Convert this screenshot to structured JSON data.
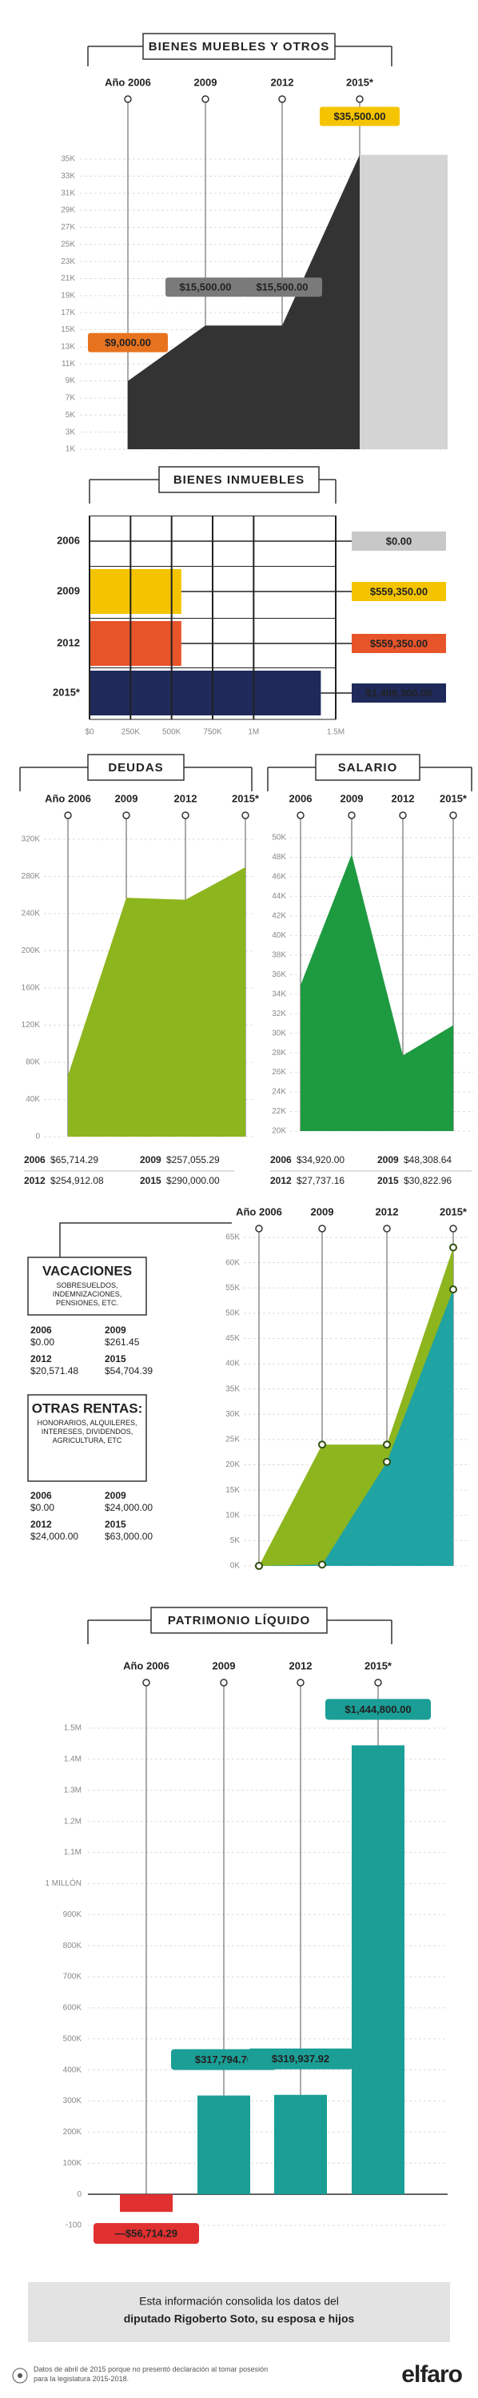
{
  "chart_data": [
    {
      "type": "area",
      "title": "BIENES MUEBLES Y OTROS",
      "categories": [
        "Año 2006",
        "2009",
        "2012",
        "2015*"
      ],
      "values": [
        9000,
        15500,
        15500,
        35500
      ],
      "value_labels": [
        "$9,000.00",
        "$15,500.00",
        "$15,500.00",
        "$35,500.00"
      ],
      "color": "#333333",
      "label_colors": [
        "#e8731f",
        "#7a7a7a",
        "#7a7a7a",
        "#f5c400"
      ],
      "ylim": [
        1000,
        35000
      ],
      "yticks": [
        {
          "value": 1000,
          "label": "1K"
        },
        {
          "value": 3000,
          "label": "3K"
        },
        {
          "value": 5000,
          "label": "5K"
        },
        {
          "value": 7000,
          "label": "7K"
        },
        {
          "value": 9000,
          "label": "9K"
        },
        {
          "value": 11000,
          "label": "11K"
        },
        {
          "value": 13000,
          "label": "13K"
        },
        {
          "value": 15000,
          "label": "15K"
        },
        {
          "value": 17000,
          "label": "17K"
        },
        {
          "value": 19000,
          "label": "19K"
        },
        {
          "value": 21000,
          "label": "21K"
        },
        {
          "value": 23000,
          "label": "23K"
        },
        {
          "value": 25000,
          "label": "25K"
        },
        {
          "value": 27000,
          "label": "27K"
        },
        {
          "value": 29000,
          "label": "29K"
        },
        {
          "value": 31000,
          "label": "31K"
        },
        {
          "value": 33000,
          "label": "33K"
        },
        {
          "value": 35000,
          "label": "35K"
        }
      ],
      "grid": true
    },
    {
      "type": "bar",
      "orientation": "horizontal",
      "title": "BIENES INMUEBLES",
      "categories": [
        "2006",
        "2009",
        "2012",
        "2015*"
      ],
      "values": [
        0,
        559350,
        559350,
        1409300
      ],
      "value_labels": [
        "$0.00",
        "$559,350.00",
        "$559,350.00",
        "$1,409,300.00"
      ],
      "colors": [
        "#c8c8c8",
        "#f5c400",
        "#e8542a",
        "#1f2a5a"
      ],
      "xlim": [
        0,
        1500000
      ],
      "xticks": [
        {
          "value": 0,
          "label": "$0"
        },
        {
          "value": 250000,
          "label": "250K"
        },
        {
          "value": 500000,
          "label": "500K"
        },
        {
          "value": 750000,
          "label": "750K"
        },
        {
          "value": 1000000,
          "label": "1M"
        },
        {
          "value": 1500000,
          "label": "1.5M"
        }
      ],
      "grid": true
    },
    {
      "type": "area",
      "title": "DEUDAS",
      "categories": [
        "Año 2006",
        "2009",
        "2012",
        "2015*"
      ],
      "table_categories": [
        "2006",
        "2009",
        "2012",
        "2015"
      ],
      "values": [
        65714.29,
        257055.29,
        254912.08,
        290000
      ],
      "value_labels": [
        "$65,714.29",
        "$257,055.29",
        "$254,912.08",
        "$290,000.00"
      ],
      "color": "#8db51e",
      "ylim": [
        0,
        320000
      ],
      "yticks": [
        0,
        {
          "value": 40000,
          "label": "40K"
        },
        {
          "value": 80000,
          "label": "80K"
        },
        {
          "value": 120000,
          "label": "120K"
        },
        {
          "value": 160000,
          "label": "160K"
        },
        {
          "value": 200000,
          "label": "200K"
        },
        {
          "value": 240000,
          "label": "240K"
        },
        {
          "value": 280000,
          "label": "280K"
        },
        {
          "value": 320000,
          "label": "320K"
        }
      ],
      "grid": true
    },
    {
      "type": "area",
      "title": "SALARIO",
      "categories": [
        "2006",
        "2009",
        "2012",
        "2015*"
      ],
      "table_categories": [
        "2006",
        "2009",
        "2012",
        "2015"
      ],
      "values": [
        34920,
        48308.64,
        27737.16,
        30822.96
      ],
      "value_labels": [
        "$34,920.00",
        "$48,308.64",
        "$27,737.16",
        "$30,822.96"
      ],
      "color": "#1e9a40",
      "ylim": [
        20000,
        50000
      ],
      "yticks": [
        {
          "value": 20000,
          "label": "20K"
        },
        {
          "value": 22000,
          "label": "22K"
        },
        {
          "value": 24000,
          "label": "24K"
        },
        {
          "value": 26000,
          "label": "26K"
        },
        {
          "value": 28000,
          "label": "28K"
        },
        {
          "value": 30000,
          "label": "30K"
        },
        {
          "value": 32000,
          "label": "32K"
        },
        {
          "value": 34000,
          "label": "34K"
        },
        {
          "value": 36000,
          "label": "36K"
        },
        {
          "value": 38000,
          "label": "38K"
        },
        {
          "value": 40000,
          "label": "40K"
        },
        {
          "value": 42000,
          "label": "42K"
        },
        {
          "value": 44000,
          "label": "44K"
        },
        {
          "value": 46000,
          "label": "46K"
        },
        {
          "value": 48000,
          "label": "48K"
        },
        {
          "value": 50000,
          "label": "50K"
        }
      ],
      "grid": true
    },
    {
      "type": "area",
      "categories": [
        "Año 2006",
        "2009",
        "2012",
        "2015*"
      ],
      "table_categories": [
        "2006",
        "2009",
        "2012",
        "2015"
      ],
      "series": [
        {
          "name": "VACACIONES",
          "description": "SOBRESUELDOS, INDEMNIZACIONES, PENSIONES, ETC.",
          "color": "#1fa3a3",
          "values": [
            0,
            261.45,
            20571.48,
            54704.39
          ],
          "value_labels": [
            "$0.00",
            "$261.45",
            "$20,571.48",
            "$54,704.39"
          ]
        },
        {
          "name": "OTRAS RENTAS:",
          "description": "HONORARIOS, ALQUILERES, INTERESES, DIVIDENDOS, AGRICULTURA, ETC",
          "color": "#8db51e",
          "values": [
            0,
            24000,
            24000,
            63000
          ],
          "value_labels": [
            "$0.00",
            "$24,000.00",
            "$24,000.00",
            "$63,000.00"
          ]
        }
      ],
      "ylim": [
        0,
        65000
      ],
      "yticks": [
        {
          "value": 0,
          "label": "0K"
        },
        {
          "value": 5000,
          "label": "5K"
        },
        {
          "value": 10000,
          "label": "10K"
        },
        {
          "value": 15000,
          "label": "15K"
        },
        {
          "value": 20000,
          "label": "20K"
        },
        {
          "value": 25000,
          "label": "25K"
        },
        {
          "value": 30000,
          "label": "30K"
        },
        {
          "value": 35000,
          "label": "35K"
        },
        {
          "value": 40000,
          "label": "40K"
        },
        {
          "value": 45000,
          "label": "45K"
        },
        {
          "value": 50000,
          "label": "50K"
        },
        {
          "value": 55000,
          "label": "55K"
        },
        {
          "value": 60000,
          "label": "60K"
        },
        {
          "value": 65000,
          "label": "65K"
        }
      ],
      "grid": true
    },
    {
      "type": "bar",
      "orientation": "vertical",
      "title": "PATRIMONIO LÍQUIDO",
      "categories": [
        "Año 2006",
        "2009",
        "2012",
        "2015*"
      ],
      "values": [
        -56714.29,
        317794.7,
        319937.92,
        1444800
      ],
      "value_labels": [
        "—$56,714.29",
        "$317,794.70",
        "$319,937.92",
        "$1,444,800.00"
      ],
      "color": "#1a9e96",
      "negative_color": "#e03030",
      "ylim": [
        -100000,
        1500000
      ],
      "yticks": [
        {
          "value": -100000,
          "label": "-100"
        },
        0,
        {
          "value": 100000,
          "label": "100K"
        },
        {
          "value": 200000,
          "label": "200K"
        },
        {
          "value": 300000,
          "label": "300K"
        },
        {
          "value": 400000,
          "label": "400K"
        },
        {
          "value": 500000,
          "label": "500K"
        },
        {
          "value": 600000,
          "label": "600K"
        },
        {
          "value": 700000,
          "label": "700K"
        },
        {
          "value": 800000,
          "label": "800K"
        },
        {
          "value": 900000,
          "label": "900K"
        },
        {
          "value": 1000000,
          "label": "1 MILLÓN"
        },
        {
          "value": 1100000,
          "label": "1.1M"
        },
        {
          "value": 1200000,
          "label": "1.2M"
        },
        {
          "value": 1300000,
          "label": "1.3M"
        },
        {
          "value": 1400000,
          "label": "1.4M"
        },
        {
          "value": 1500000,
          "label": "1.5M"
        }
      ],
      "grid": true
    }
  ],
  "footer": {
    "lines": [
      "Esta información consolida los datos del",
      "diputado Rigoberto Soto, su esposa e hijos"
    ],
    "footnote": "Datos de abril de 2015 porque no presentó declaración al tomar posesión para la legislatura 2015-2018.",
    "brand": "elfaro"
  }
}
